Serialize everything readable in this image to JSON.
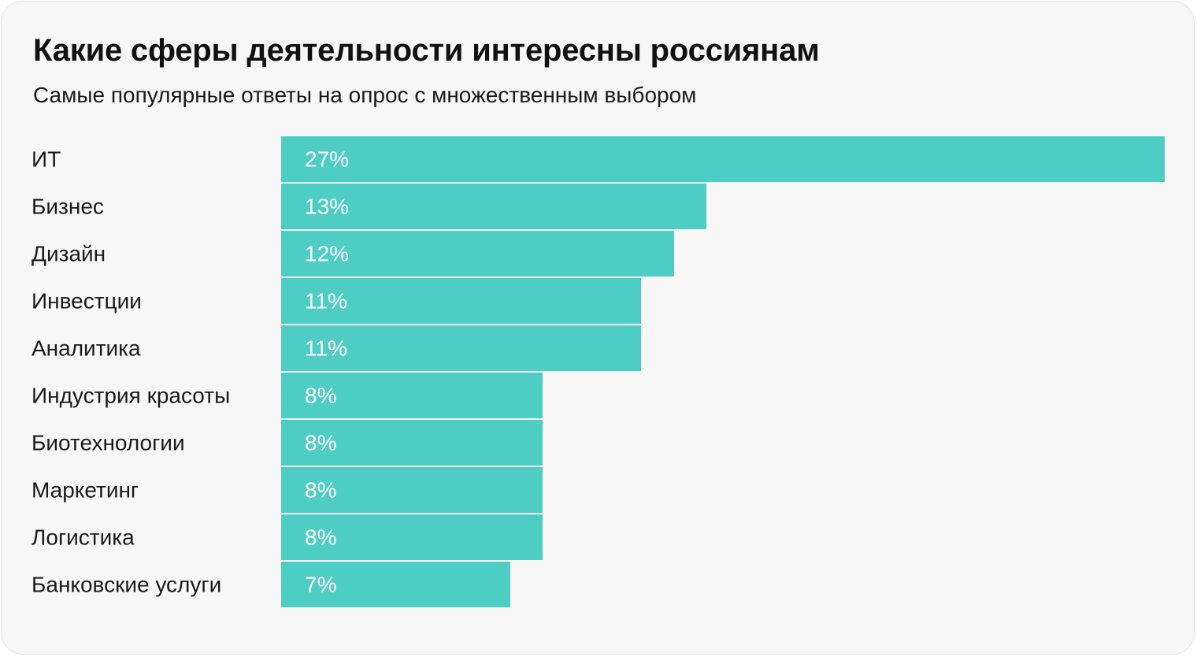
{
  "chart_data": {
    "type": "bar",
    "orientation": "horizontal",
    "title": "Какие сферы деятельности интересны россиянам",
    "subtitle": "Самые популярные ответы на опрос с множественным выбором",
    "categories": [
      "ИТ",
      "Бизнес",
      "Дизайн",
      "Инвестции",
      "Аналитика",
      "Индустрия красоты",
      "Биотехнологии",
      "Маркетинг",
      "Логистика",
      "Банковские услуги"
    ],
    "values": [
      27,
      13,
      12,
      11,
      11,
      8,
      8,
      8,
      8,
      7
    ],
    "value_labels": [
      "27%",
      "13%",
      "12%",
      "11%",
      "11%",
      "8%",
      "8%",
      "8%",
      "8%",
      "7%"
    ],
    "unit": "%",
    "xlim": [
      0,
      27
    ],
    "xlabel": "",
    "ylabel": "",
    "grid": false,
    "legend": "none",
    "colors": {
      "bar": "#4ecdc4",
      "value_text": "#ffffff",
      "category_text": "#1a1a1a",
      "background": "#f7f7f7"
    }
  }
}
